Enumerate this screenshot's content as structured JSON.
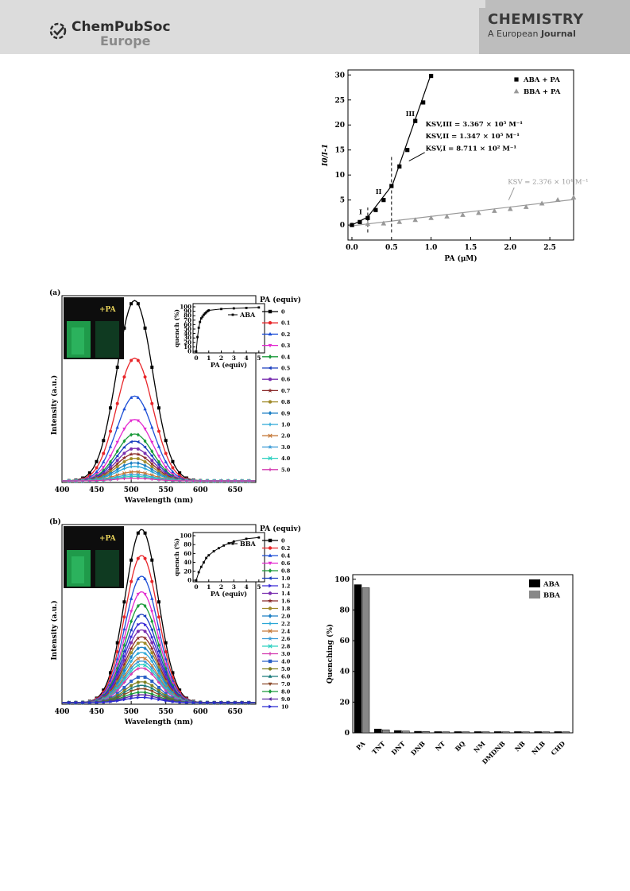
{
  "header": {
    "brand_line1": "ChemPubSoc",
    "brand_line2": "Europe",
    "journal_title": "CHEMISTRY",
    "journal_sub_a": "A",
    "journal_sub_b": "European",
    "journal_sub_c": "Journal"
  },
  "chart_data": [
    {
      "type": "scatter",
      "ylabel": "I0/I-1",
      "xlabel": "PA (μM)",
      "xlim": [
        -0.05,
        2.8
      ],
      "ylim": [
        -3,
        31
      ],
      "xticks": [
        "0.0",
        "0.5",
        "1.0",
        "1.5",
        "2.0",
        "2.5"
      ],
      "yticks": [
        "0",
        "5",
        "10",
        "15",
        "20",
        "25",
        "30"
      ],
      "series": [
        {
          "name": "ABA + PA",
          "marker": "square",
          "color": "#000000",
          "x": [
            0.0,
            0.1,
            0.2,
            0.3,
            0.4,
            0.5,
            0.6,
            0.7,
            0.8,
            0.9,
            1.0
          ],
          "y": [
            0.0,
            0.6,
            1.4,
            3.0,
            5.0,
            7.8,
            11.7,
            15.0,
            20.8,
            24.5,
            29.8
          ]
        },
        {
          "name": "BBA + PA",
          "marker": "triangle",
          "color": "#999999",
          "x": [
            0.0,
            0.2,
            0.4,
            0.6,
            0.8,
            1.0,
            1.2,
            1.4,
            1.6,
            1.8,
            2.0,
            2.2,
            2.4,
            2.6,
            2.8
          ],
          "y": [
            0.0,
            0.2,
            0.3,
            0.6,
            1.0,
            1.4,
            1.7,
            2.0,
            2.4,
            2.8,
            3.2,
            3.6,
            4.3,
            5.0,
            5.5
          ]
        }
      ],
      "annotations": {
        "region_i": "I",
        "region_ii": "II",
        "region_iii": "III",
        "k_iii": "KSV,III = 3.367 × 10⁵ M⁻¹",
        "k_ii": "KSV,II = 1.347 × 10⁵ M⁻¹",
        "k_i": "KSV,I = 8.711 × 10² M⁻¹",
        "k_bba": "KSV = 2.376 × 10⁴ M⁻¹"
      }
    },
    {
      "type": "line",
      "panel_label": "(a)",
      "xlabel": "Wavelength (nm)",
      "ylabel": "Intensity (a.u.)",
      "xlim": [
        400,
        680
      ],
      "xticks": [
        "400",
        "450",
        "500",
        "550",
        "600",
        "650"
      ],
      "peak_nm": 505,
      "legend_title": "PA (equiv)",
      "series_names": [
        "0",
        "0.1",
        "0.2",
        "0.3",
        "0.4",
        "0.5",
        "0.6",
        "0.7",
        "0.8",
        "0.9",
        "1.0",
        "2.0",
        "3.0",
        "4.0",
        "5.0"
      ],
      "peak_values": [
        1.0,
        0.68,
        0.47,
        0.34,
        0.26,
        0.22,
        0.18,
        0.15,
        0.125,
        0.1,
        0.08,
        0.05,
        0.035,
        0.025,
        0.015
      ],
      "photo_label": "+PA",
      "inset": {
        "name": "ABA",
        "ylabel": "quench (%)",
        "xlabel": "PA (equiv)",
        "xticks": [
          "0",
          "1",
          "2",
          "3",
          "4",
          "5"
        ],
        "yticks": [
          "0",
          "10",
          "20",
          "30",
          "40",
          "50",
          "60",
          "70",
          "80",
          "90",
          "100"
        ],
        "x": [
          0,
          0.1,
          0.2,
          0.3,
          0.4,
          0.5,
          0.6,
          0.7,
          0.8,
          0.9,
          1.0,
          2.0,
          3.0,
          4.0,
          5.0
        ],
        "y": [
          0,
          32,
          53,
          66,
          74,
          78,
          82,
          85,
          87.5,
          90,
          92,
          95,
          96.5,
          97.5,
          98.5
        ]
      }
    },
    {
      "type": "line",
      "panel_label": "(b)",
      "xlabel": "Wavelength (nm)",
      "ylabel": "Intensity (a.u.)",
      "xlim": [
        400,
        680
      ],
      "xticks": [
        "400",
        "450",
        "500",
        "550",
        "600",
        "650"
      ],
      "peak_nm": 515,
      "legend_title": "PA (equiv)",
      "series_names": [
        "0",
        "0.2",
        "0.4",
        "0.6",
        "0.8",
        "1.0",
        "1.2",
        "1.4",
        "1.6",
        "1.8",
        "2.0",
        "2.2",
        "2.4",
        "2.6",
        "2.8",
        "3.0",
        "4.0",
        "5.0",
        "6.0",
        "7.0",
        "8.0",
        "9.0",
        "10"
      ],
      "peak_values": [
        1.0,
        0.85,
        0.73,
        0.64,
        0.57,
        0.51,
        0.46,
        0.42,
        0.38,
        0.35,
        0.32,
        0.29,
        0.26,
        0.24,
        0.22,
        0.2,
        0.15,
        0.12,
        0.1,
        0.08,
        0.06,
        0.045,
        0.03
      ],
      "photo_label": "+PA",
      "inset": {
        "name": "BBA",
        "ylabel": "quench (%)",
        "xlabel": "PA (equiv)",
        "xticks": [
          "0",
          "1",
          "2",
          "3",
          "4",
          "5"
        ],
        "yticks": [
          "0",
          "20",
          "40",
          "60",
          "80",
          "100"
        ],
        "x": [
          0,
          0.2,
          0.4,
          0.6,
          0.8,
          1.0,
          1.4,
          1.8,
          2.2,
          2.6,
          3.0,
          4.0,
          5.0
        ],
        "y": [
          0,
          18,
          30,
          40,
          50,
          56,
          65,
          72,
          78,
          83,
          87,
          93,
          96
        ]
      }
    },
    {
      "type": "bar",
      "ylabel": "Quenching (%)",
      "ylim": [
        0,
        100
      ],
      "yticks": [
        "0",
        "20",
        "40",
        "60",
        "80",
        "100"
      ],
      "categories": [
        "PA",
        "TNT",
        "DNT",
        "DNB",
        "NT",
        "BQ",
        "NM",
        "DMDNB",
        "NB",
        "NLB",
        "CHD"
      ],
      "series": [
        {
          "name": "ABA",
          "color": "#000000",
          "values": [
            96.5,
            2.5,
            1.5,
            1.0,
            0.8,
            0.8,
            0.8,
            0.8,
            0.8,
            0.8,
            0.8
          ]
        },
        {
          "name": "BBA",
          "color": "#888888",
          "values": [
            94.5,
            2.0,
            1.2,
            0.9,
            0.7,
            0.7,
            0.7,
            0.7,
            0.7,
            0.7,
            0.7
          ]
        }
      ]
    }
  ]
}
